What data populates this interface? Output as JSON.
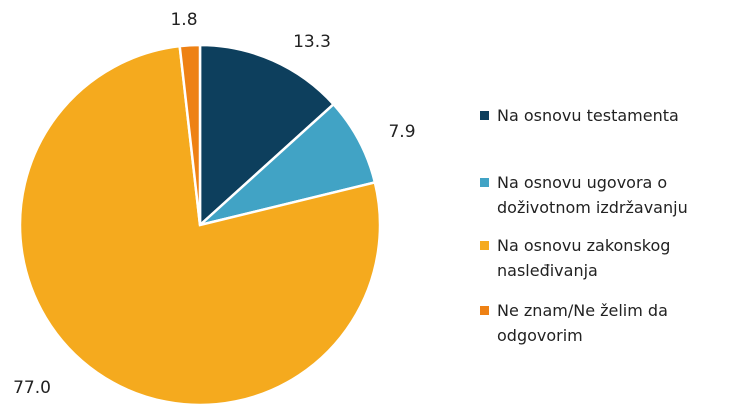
{
  "chart_data": {
    "type": "pie",
    "categories": [
      "Na osnovu testamenta",
      "Na osnovu ugovora o doživotnom izdržavanju",
      "Na osnovu zakonskog nasleđivanja",
      "Ne znam/Ne želim da odgovorim"
    ],
    "values": [
      13.3,
      7.9,
      77.0,
      1.8
    ],
    "value_labels": [
      "13.3",
      "7.9",
      "77.0",
      "1.8"
    ],
    "colors": [
      "#0d3f5d",
      "#41a3c5",
      "#f5aa1e",
      "#ee8114"
    ],
    "legend": "right"
  }
}
